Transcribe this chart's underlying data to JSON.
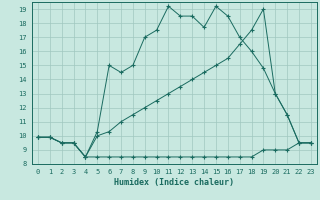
{
  "xlabel": "Humidex (Indice chaleur)",
  "bg_color": "#c8e8e0",
  "grid_color": "#a0c8c0",
  "line_color": "#1a6b60",
  "xlim": [
    -0.5,
    23.5
  ],
  "ylim": [
    8,
    19.5
  ],
  "yticks": [
    8,
    9,
    10,
    11,
    12,
    13,
    14,
    15,
    16,
    17,
    18,
    19
  ],
  "xticks": [
    0,
    1,
    2,
    3,
    4,
    5,
    6,
    7,
    8,
    9,
    10,
    11,
    12,
    13,
    14,
    15,
    16,
    17,
    18,
    19,
    20,
    21,
    22,
    23
  ],
  "line1_x": [
    0,
    1,
    2,
    3,
    4,
    5,
    6,
    7,
    8,
    9,
    10,
    11,
    12,
    13,
    14,
    15,
    16,
    17,
    18,
    19,
    20,
    21,
    22,
    23
  ],
  "line1_y": [
    9.9,
    9.9,
    9.5,
    9.5,
    8.5,
    8.5,
    8.5,
    8.5,
    8.5,
    8.5,
    8.5,
    8.5,
    8.5,
    8.5,
    8.5,
    8.5,
    8.5,
    8.5,
    8.5,
    9.0,
    9.0,
    9.0,
    9.5,
    9.5
  ],
  "line2_x": [
    0,
    1,
    2,
    3,
    4,
    5,
    6,
    7,
    8,
    9,
    10,
    11,
    12,
    13,
    14,
    15,
    16,
    17,
    18,
    19,
    20,
    21,
    22,
    23
  ],
  "line2_y": [
    9.9,
    9.9,
    9.5,
    9.5,
    8.5,
    10.0,
    10.3,
    11.0,
    11.5,
    12.0,
    12.5,
    13.0,
    13.5,
    14.0,
    14.5,
    15.0,
    15.5,
    16.5,
    17.5,
    19.0,
    13.0,
    11.5,
    9.5,
    9.5
  ],
  "line3_x": [
    0,
    1,
    2,
    3,
    4,
    5,
    6,
    7,
    8,
    9,
    10,
    11,
    12,
    13,
    14,
    15,
    16,
    17,
    18,
    19,
    20,
    21,
    22,
    23
  ],
  "line3_y": [
    9.9,
    9.9,
    9.5,
    9.5,
    8.5,
    10.3,
    15.0,
    14.5,
    15.0,
    17.0,
    17.5,
    19.2,
    18.5,
    18.5,
    17.7,
    19.2,
    18.5,
    17.0,
    16.0,
    14.8,
    13.0,
    11.5,
    9.5,
    9.5
  ]
}
